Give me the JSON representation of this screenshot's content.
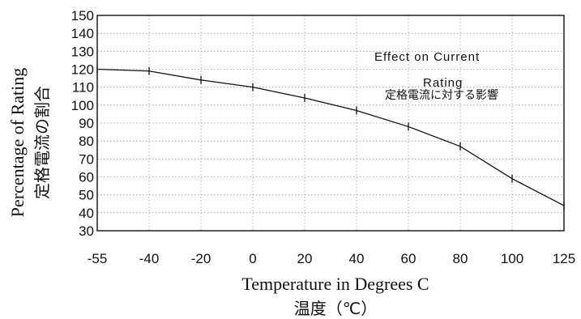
{
  "chart_data": {
    "type": "line",
    "annotation": "Effect on Current Rating",
    "annotation_jp": "定格電流に対する影響",
    "ylabel": "Percentage of Rating",
    "ylabel_jp": "定格電流の割合",
    "xlabel": "Temperature in Degrees C",
    "xlabel_jp": "温度（℃）",
    "x_ticks": [
      "-55",
      "-40",
      "-20",
      "0",
      "20",
      "40",
      "60",
      "80",
      "100",
      "125"
    ],
    "ylim": [
      30,
      150
    ],
    "y_ticks": [
      30,
      40,
      50,
      60,
      70,
      80,
      90,
      100,
      110,
      120,
      130,
      140,
      150
    ],
    "grid": true,
    "series": [
      {
        "x": [
          -55,
          -40,
          -20,
          0,
          20,
          40,
          60,
          80,
          100,
          125
        ],
        "y": [
          120,
          119,
          114,
          110,
          104,
          97,
          88,
          77,
          59,
          44
        ]
      }
    ]
  }
}
